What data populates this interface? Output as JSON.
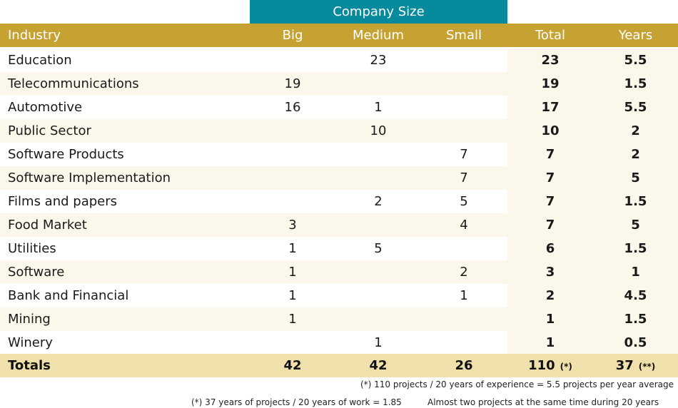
{
  "group_header": "Company Size",
  "headers": {
    "industry": "Industry",
    "big": "Big",
    "medium": "Medium",
    "small": "Small",
    "total": "Total",
    "years": "Years"
  },
  "rows": [
    {
      "industry": "Education",
      "big": "",
      "medium": "23",
      "small": "",
      "total": "23",
      "years": "5.5"
    },
    {
      "industry": "Telecommunications",
      "big": "19",
      "medium": "",
      "small": "",
      "total": "19",
      "years": "1.5"
    },
    {
      "industry": "Automotive",
      "big": "16",
      "medium": "1",
      "small": "",
      "total": "17",
      "years": "5.5"
    },
    {
      "industry": "Public Sector",
      "big": "",
      "medium": "10",
      "small": "",
      "total": "10",
      "years": "2"
    },
    {
      "industry": "Software Products",
      "big": "",
      "medium": "",
      "small": "7",
      "total": "7",
      "years": "2"
    },
    {
      "industry": "Software Implementation",
      "big": "",
      "medium": "",
      "small": "7",
      "total": "7",
      "years": "5"
    },
    {
      "industry": "Films and papers",
      "big": "",
      "medium": "2",
      "small": "5",
      "total": "7",
      "years": "1.5"
    },
    {
      "industry": "Food Market",
      "big": "3",
      "medium": "",
      "small": "4",
      "total": "7",
      "years": "5"
    },
    {
      "industry": "Utilities",
      "big": "1",
      "medium": "5",
      "small": "",
      "total": "6",
      "years": "1.5"
    },
    {
      "industry": "Software",
      "big": "1",
      "medium": "",
      "small": "2",
      "total": "3",
      "years": "1"
    },
    {
      "industry": "Bank and Financial",
      "big": "1",
      "medium": "",
      "small": "1",
      "total": "2",
      "years": "4.5"
    },
    {
      "industry": "Mining",
      "big": "1",
      "medium": "",
      "small": "",
      "total": "1",
      "years": "1.5"
    },
    {
      "industry": "Winery",
      "big": "",
      "medium": "1",
      "small": "",
      "total": "1",
      "years": "0.5"
    }
  ],
  "totals": {
    "label": "Totals",
    "big": "42",
    "medium": "42",
    "small": "26",
    "total": "110",
    "total_mark": "(*)",
    "years": "37",
    "years_mark": "(**)"
  },
  "notes": {
    "note1": "(*) 110 projects / 20 years of experience = 5.5 projects per year average",
    "note2": "(*) 37 years of projects  / 20 years of work = 1.85",
    "note3": "Almost two projects at the same time during 20 years"
  },
  "colors": {
    "group_header_bg": "#078a9b",
    "header_bg": "#c6a232",
    "totals_bg": "#efe0ac",
    "alt_row_bg": "#fbf7ea"
  }
}
